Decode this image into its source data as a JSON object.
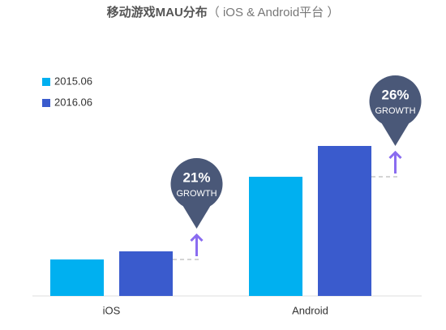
{
  "chart_data": {
    "type": "bar",
    "title": "移动游戏MAU分布",
    "subtitle": "（ iOS & Android平台 ）",
    "categories": [
      "iOS",
      "Android"
    ],
    "series": [
      {
        "name": "2015.06",
        "color": "#00b0f0",
        "values": [
          45,
          147
        ]
      },
      {
        "name": "2016.06",
        "color": "#3a5bcd",
        "values": [
          55,
          185
        ]
      }
    ],
    "ylim": [
      0,
      200
    ],
    "annotations": [
      {
        "text": "21%",
        "subtext": "GROWTH"
      },
      {
        "text": "26%",
        "subtext": "GROWTH"
      }
    ]
  }
}
